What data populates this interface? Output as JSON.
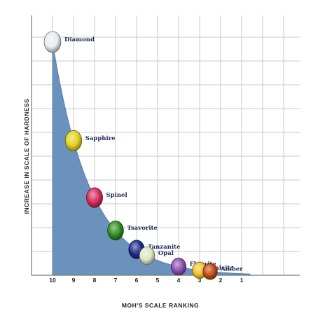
{
  "chart_data": {
    "type": "area",
    "title": "",
    "xlabel": "MOH'S SCALE RANKING",
    "ylabel": "INCREASE IN SCALE OF HARDNESS",
    "x_reversed": true,
    "xlim": [
      10,
      1
    ],
    "categories": [
      "10",
      "9",
      "8",
      "7",
      "6",
      "5",
      "4",
      "3",
      "2",
      "1"
    ],
    "grid": true,
    "gems": [
      {
        "name": "Diamond",
        "moh": 10,
        "color": "#e8ecf0"
      },
      {
        "name": "Sapphire",
        "moh": 9,
        "color": "#e3d21e"
      },
      {
        "name": "Spinel",
        "moh": 8,
        "color": "#d6285a"
      },
      {
        "name": "Tsavorite",
        "moh": 7,
        "color": "#2f8c1e"
      },
      {
        "name": "Tanzanite",
        "moh": 6,
        "color": "#1c2a8a"
      },
      {
        "name": "Opal",
        "moh": 5.5,
        "color": "#dfe6c0"
      },
      {
        "name": "Flourite",
        "moh": 4,
        "color": "#8a4fb0"
      },
      {
        "name": "Calcite",
        "moh": 3,
        "color": "#f0c22a"
      },
      {
        "name": "Amber",
        "moh": 2.5,
        "color": "#c14a12"
      }
    ],
    "colors": {
      "area": "#6b92bd",
      "area_edge": "#4d76a3",
      "grid": "#c8c8c8",
      "axis": "#777777"
    }
  }
}
